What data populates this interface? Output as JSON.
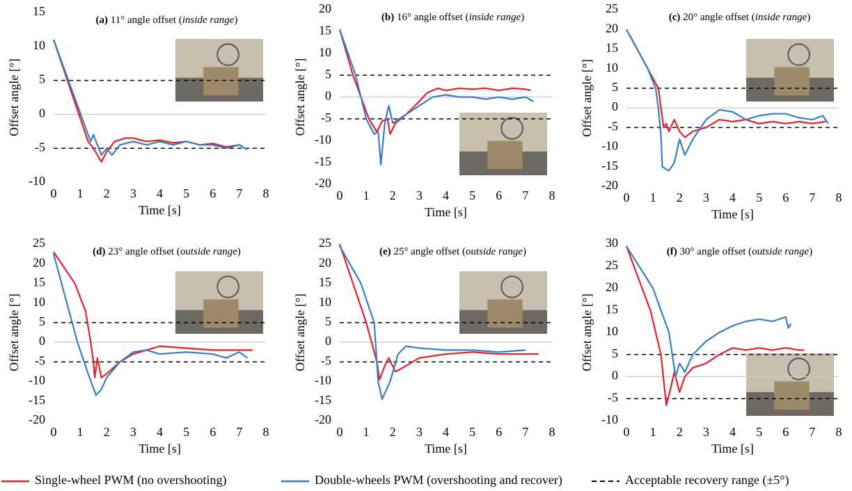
{
  "chart_data": [
    {
      "type": "line",
      "title": [
        "(a)",
        " 11° angle offset (",
        "inside range",
        ")"
      ],
      "xlabel": "Time [s]",
      "ylabel": "Offset angle [°]",
      "xlim": [
        0,
        8
      ],
      "xticks": [
        0,
        1,
        2,
        3,
        4,
        5,
        6,
        7,
        8
      ],
      "ylim": [
        -10,
        15
      ],
      "yticks": [
        -10,
        -5,
        0,
        5,
        10,
        15
      ],
      "ref_lines": [
        5,
        -5
      ],
      "series": [
        {
          "color": "#e0202a",
          "x": [
            0,
            1.3,
            1.5,
            1.8,
            2,
            2.3,
            2.7,
            3,
            3.5,
            4,
            4.5,
            5,
            5.5,
            6,
            6.5,
            7,
            7.2
          ],
          "values": [
            11,
            -4,
            -5,
            -7,
            -5.5,
            -4,
            -3.5,
            -3.5,
            -4,
            -3.8,
            -4.2,
            -4,
            -4.5,
            -4.3,
            -4.8,
            -4.5,
            -5
          ]
        },
        {
          "color": "#3a7cc4",
          "x": [
            0,
            1.3,
            1.4,
            1.5,
            1.8,
            2,
            2.2,
            2.5,
            3,
            3.5,
            4,
            4.5,
            5,
            5.5,
            6,
            6.5,
            7,
            7.3
          ],
          "values": [
            11,
            -3,
            -4,
            -3,
            -6,
            -5,
            -6,
            -4.5,
            -4,
            -4.5,
            -4,
            -4.5,
            -4,
            -4.5,
            -4.5,
            -5,
            -4.5,
            -5.2
          ]
        }
      ]
    },
    {
      "type": "line",
      "title": [
        "(b)",
        " 16° angle offset (",
        "inside range",
        ")"
      ],
      "xlabel": "Time [s]",
      "ylabel": "Offset angle [°]",
      "xlim": [
        0,
        8
      ],
      "xticks": [
        0,
        1,
        2,
        3,
        4,
        5,
        6,
        7,
        8
      ],
      "ylim": [
        -20,
        20
      ],
      "yticks": [
        -20,
        -15,
        -10,
        -5,
        0,
        5,
        10,
        15,
        20
      ],
      "ref_lines": [
        5,
        -5
      ],
      "series": [
        {
          "color": "#e0202a",
          "x": [
            0,
            0.5,
            1.1,
            1.4,
            1.6,
            1.8,
            1.9,
            2.1,
            2.5,
            3,
            3.3,
            3.7,
            4,
            4.5,
            5,
            5.5,
            6,
            6.5,
            7,
            7.2
          ],
          "values": [
            15.5,
            5,
            -5,
            -8,
            -5.5,
            -5,
            -8.5,
            -6,
            -4,
            -1,
            1,
            2,
            1.5,
            2,
            1.8,
            2,
            1.5,
            2,
            1.8,
            1.5
          ]
        },
        {
          "color": "#3a7cc4",
          "x": [
            0,
            0.6,
            1,
            1.3,
            1.45,
            1.55,
            1.7,
            1.85,
            2,
            2.5,
            3,
            3.5,
            4,
            4.5,
            5,
            5.5,
            6,
            6.5,
            7,
            7.3
          ],
          "values": [
            15.5,
            5,
            -5,
            -8.5,
            -8,
            -15.5,
            -6,
            -2,
            -6,
            -4,
            -2,
            0,
            0.5,
            0,
            0,
            -0.5,
            0,
            -0.5,
            0,
            -1
          ]
        }
      ]
    },
    {
      "type": "line",
      "title": [
        "(c)",
        " 20° angle offset (",
        "inside range",
        ")"
      ],
      "xlabel": "Time [s]",
      "ylabel": "Offset angle [°]",
      "xlim": [
        0,
        8
      ],
      "xticks": [
        0,
        1,
        2,
        3,
        4,
        5,
        6,
        7,
        8
      ],
      "ylim": [
        -20,
        25
      ],
      "yticks": [
        -20,
        -15,
        -10,
        -5,
        0,
        5,
        10,
        15,
        20,
        25
      ],
      "ref_lines": [
        5,
        -5
      ],
      "series": [
        {
          "color": "#e0202a",
          "x": [
            0,
            0.4,
            0.8,
            1.2,
            1.3,
            1.4,
            1.5,
            1.6,
            1.8,
            2,
            2.2,
            2.5,
            3,
            3.5,
            4,
            4.5,
            5,
            5.5,
            6,
            6.5,
            7,
            7.5
          ],
          "values": [
            20,
            15,
            10,
            5,
            0,
            -5,
            -4,
            -6,
            -3,
            -6,
            -7.5,
            -6,
            -5,
            -3,
            -3.5,
            -3,
            -4,
            -3.5,
            -4,
            -3.5,
            -4,
            -3.5
          ]
        },
        {
          "color": "#3a7cc4",
          "x": [
            0,
            0.4,
            0.8,
            1.1,
            1.2,
            1.3,
            1.35,
            1.6,
            1.8,
            2,
            2.2,
            2.5,
            3,
            3.5,
            4,
            4.5,
            5,
            5.5,
            6,
            6.5,
            7,
            7.4,
            7.6
          ],
          "values": [
            20,
            15,
            10,
            5,
            0,
            -7,
            -15,
            -16,
            -14,
            -8,
            -12,
            -8,
            -3,
            -0.5,
            -1,
            -3,
            -2,
            -1.5,
            -1.5,
            -2.5,
            -3,
            -2,
            -4
          ]
        }
      ]
    },
    {
      "type": "line",
      "title": [
        "(d)",
        " 23° angle offset (",
        "outside range",
        ")"
      ],
      "xlabel": "Time [s]",
      "ylabel": "Offset angle [°]",
      "xlim": [
        0,
        8
      ],
      "xticks": [
        0,
        1,
        2,
        3,
        4,
        5,
        6,
        7,
        8
      ],
      "ylim": [
        -20,
        25
      ],
      "yticks": [
        -20,
        -15,
        -10,
        -5,
        0,
        5,
        10,
        15,
        20,
        25
      ],
      "ref_lines": [
        5,
        -5
      ],
      "series": [
        {
          "color": "#e0202a",
          "x": [
            0,
            0.8,
            1.2,
            1.4,
            1.5,
            1.55,
            1.65,
            1.8,
            2,
            2.5,
            3,
            3.5,
            4,
            5,
            6,
            7,
            7.5
          ],
          "values": [
            23,
            15,
            8,
            0,
            -5,
            -9,
            -4,
            -9,
            -8,
            -5,
            -3,
            -2,
            -1,
            -1.5,
            -2,
            -2,
            -2
          ]
        },
        {
          "color": "#3a7cc4",
          "x": [
            0,
            0.5,
            0.9,
            1.3,
            1.6,
            1.8,
            2,
            2.5,
            3,
            3.5,
            4,
            5,
            6,
            6.5,
            7,
            7.3
          ],
          "values": [
            22.5,
            10,
            0,
            -8,
            -13.5,
            -12,
            -9,
            -5,
            -2.5,
            -2,
            -3,
            -2.5,
            -3,
            -4,
            -2.5,
            -4
          ]
        }
      ]
    },
    {
      "type": "line",
      "title": [
        "(e)",
        " 25° angle offset (",
        "outside range",
        ")"
      ],
      "xlabel": "Time [s]",
      "ylabel": "Offset angle [°]",
      "xlim": [
        0,
        8
      ],
      "xticks": [
        0,
        1,
        2,
        3,
        4,
        5,
        6,
        7,
        8
      ],
      "ylim": [
        -20,
        25
      ],
      "yticks": [
        -20,
        -15,
        -10,
        -5,
        0,
        5,
        10,
        15,
        20,
        25
      ],
      "ref_lines": [
        5,
        -5
      ],
      "series": [
        {
          "color": "#e0202a",
          "x": [
            0,
            0.5,
            1,
            1.4,
            1.5,
            1.7,
            1.85,
            2.1,
            2.5,
            3,
            4,
            5,
            6,
            7,
            7.5
          ],
          "values": [
            25,
            15,
            5,
            -5,
            -9.5,
            -6,
            -4,
            -7.5,
            -6,
            -4,
            -3,
            -2.5,
            -3,
            -3,
            -3
          ]
        },
        {
          "color": "#3a7cc4",
          "x": [
            0,
            0.8,
            1.3,
            1.45,
            1.6,
            1.9,
            2.2,
            2.5,
            3,
            4,
            5,
            6,
            7
          ],
          "values": [
            24.5,
            15,
            5,
            -10,
            -14.5,
            -10,
            -3,
            -1,
            -1.5,
            -2,
            -2,
            -2.5,
            -2
          ]
        }
      ]
    },
    {
      "type": "line",
      "title": [
        "(f)",
        " 30° angle offset (",
        "outside range",
        ")"
      ],
      "xlabel": "Time [s]",
      "ylabel": "Offset angle [°]",
      "xlim": [
        0,
        8
      ],
      "xticks": [
        0,
        1,
        2,
        3,
        4,
        5,
        6,
        7,
        8
      ],
      "ylim": [
        -10,
        30
      ],
      "yticks": [
        -10,
        -5,
        0,
        5,
        10,
        15,
        20,
        25,
        30
      ],
      "ref_lines": [
        5,
        -5
      ],
      "series": [
        {
          "color": "#e0202a",
          "x": [
            0,
            0.9,
            1.3,
            1.5,
            1.65,
            1.8,
            2,
            2.2,
            2.5,
            3,
            3.5,
            4,
            4.5,
            5,
            5.5,
            6,
            6.5,
            6.7
          ],
          "values": [
            29.5,
            15,
            5,
            -6.5,
            -3,
            1,
            -3.5,
            0,
            2,
            3,
            5,
            6.5,
            6,
            6.5,
            6,
            6.5,
            6,
            6
          ]
        },
        {
          "color": "#3a7cc4",
          "x": [
            0,
            1,
            1.6,
            1.85,
            2,
            2.2,
            2.5,
            3,
            3.5,
            4,
            4.5,
            5,
            5.5,
            6,
            6.1,
            6.2
          ],
          "values": [
            29.5,
            20,
            10,
            0,
            3,
            1,
            5,
            8,
            10,
            11.5,
            12.5,
            13,
            12.5,
            13.5,
            11,
            12
          ]
        }
      ]
    }
  ],
  "legend": [
    {
      "name": "Single-wheel PWM (no overshooting)",
      "color": "#e0202a",
      "dashed": false
    },
    {
      "name": "Double-wheels PWM (overshooting and recover)",
      "color": "#3a7cc4",
      "dashed": false
    },
    {
      "name": "Acceptable recovery range (±5°)",
      "color": "#000000",
      "dashed": true
    }
  ]
}
